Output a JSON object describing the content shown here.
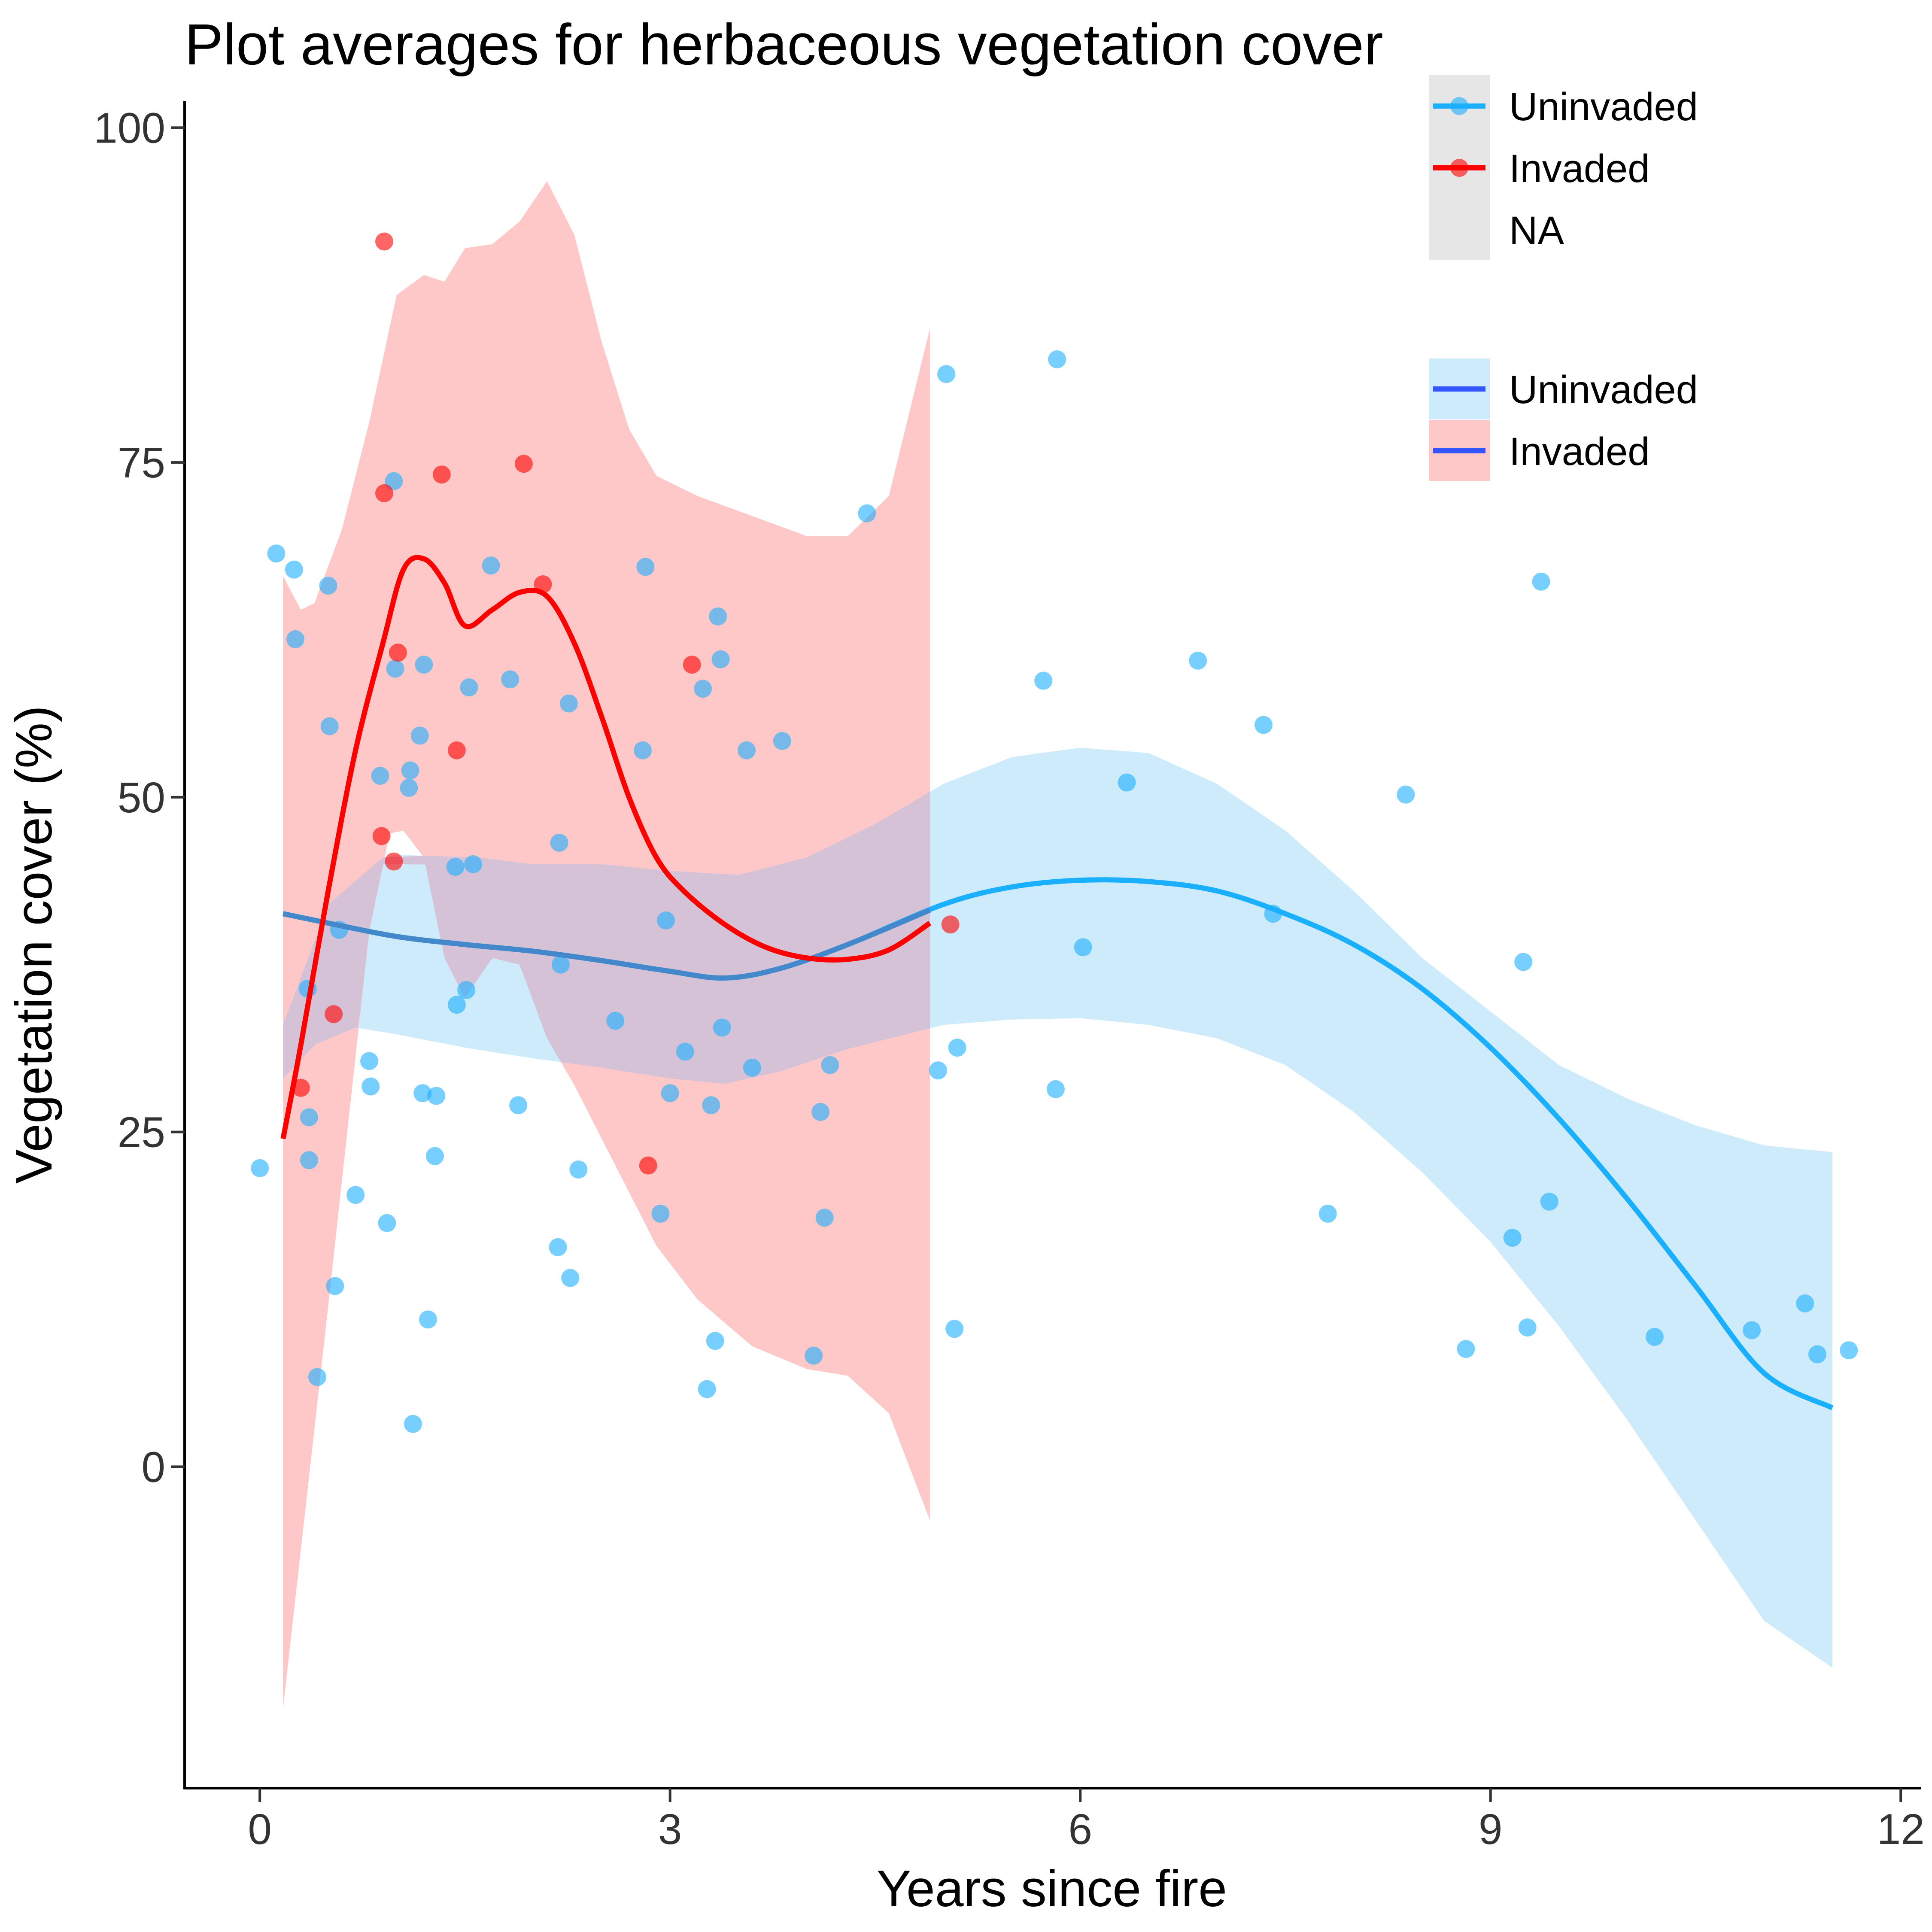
{
  "chart_data": {
    "type": "scatter",
    "title": "Plot averages for herbaceous vegetation cover",
    "xlabel": "Years since fire",
    "ylabel": "Vegetation cover (%)",
    "xlim": [
      -0.55,
      12.15
    ],
    "ylim": [
      -24,
      102
    ],
    "x_ticks": [
      0,
      3,
      6,
      9,
      12
    ],
    "y_ticks": [
      0,
      25,
      50,
      75,
      100
    ],
    "grid": false,
    "legend_position": "top-right",
    "colors": {
      "uninvaded": "#1aafff",
      "invaded": "#ff0000",
      "uninvaded_band": "#cdebfb",
      "invaded_band": "#ffc8c8",
      "overlap_band": "#d6c2d6",
      "overlap_line": "#4488cc",
      "legend_line": "#3355ff",
      "na_key": "#e6e6e6"
    },
    "series": [
      {
        "name": "Uninvaded",
        "points": [
          [
            0.0,
            22.3
          ],
          [
            0.12,
            68.2
          ],
          [
            0.25,
            67.0
          ],
          [
            0.26,
            61.8
          ],
          [
            0.35,
            35.7
          ],
          [
            0.36,
            26.1
          ],
          [
            0.36,
            22.9
          ],
          [
            0.42,
            6.7
          ],
          [
            0.5,
            65.8
          ],
          [
            0.51,
            55.3
          ],
          [
            0.55,
            13.5
          ],
          [
            0.58,
            40.1
          ],
          [
            0.7,
            20.3
          ],
          [
            0.8,
            30.3
          ],
          [
            0.81,
            28.4
          ],
          [
            0.88,
            51.6
          ],
          [
            0.93,
            18.2
          ],
          [
            0.98,
            73.6
          ],
          [
            0.99,
            59.6
          ],
          [
            1.09,
            50.7
          ],
          [
            1.1,
            52.0
          ],
          [
            1.12,
            3.2
          ],
          [
            1.17,
            54.6
          ],
          [
            1.19,
            27.9
          ],
          [
            1.2,
            59.9
          ],
          [
            1.23,
            11.0
          ],
          [
            1.28,
            23.2
          ],
          [
            1.29,
            27.7
          ],
          [
            1.43,
            44.8
          ],
          [
            1.44,
            34.5
          ],
          [
            1.51,
            35.6
          ],
          [
            1.53,
            58.2
          ],
          [
            1.56,
            45.0
          ],
          [
            1.69,
            67.3
          ],
          [
            1.83,
            58.8
          ],
          [
            1.89,
            27.0
          ],
          [
            2.18,
            16.4
          ],
          [
            2.19,
            46.6
          ],
          [
            2.2,
            37.5
          ],
          [
            2.26,
            57.0
          ],
          [
            2.27,
            14.1
          ],
          [
            2.33,
            22.2
          ],
          [
            2.6,
            33.3
          ],
          [
            2.8,
            53.5
          ],
          [
            2.82,
            67.2
          ],
          [
            2.93,
            18.9
          ],
          [
            2.97,
            40.8
          ],
          [
            3.0,
            27.9
          ],
          [
            3.11,
            31.0
          ],
          [
            3.24,
            58.1
          ],
          [
            3.27,
            5.8
          ],
          [
            3.3,
            27.0
          ],
          [
            3.33,
            9.4
          ],
          [
            3.35,
            63.5
          ],
          [
            3.37,
            60.3
          ],
          [
            3.38,
            32.8
          ],
          [
            3.56,
            53.5
          ],
          [
            3.6,
            29.8
          ],
          [
            3.82,
            54.2
          ],
          [
            4.05,
            8.3
          ],
          [
            4.1,
            26.5
          ],
          [
            4.13,
            18.6
          ],
          [
            4.17,
            30.0
          ],
          [
            4.44,
            71.2
          ],
          [
            4.96,
            29.6
          ],
          [
            5.02,
            81.6
          ],
          [
            5.08,
            10.3
          ],
          [
            5.1,
            31.3
          ],
          [
            5.73,
            58.7
          ],
          [
            5.82,
            28.2
          ],
          [
            5.83,
            82.7
          ],
          [
            6.02,
            38.8
          ],
          [
            6.34,
            51.1
          ],
          [
            6.86,
            60.2
          ],
          [
            7.34,
            55.4
          ],
          [
            7.41,
            41.3
          ],
          [
            7.81,
            18.9
          ],
          [
            8.38,
            50.2
          ],
          [
            8.82,
            8.8
          ],
          [
            9.16,
            17.1
          ],
          [
            9.24,
            37.7
          ],
          [
            9.27,
            10.4
          ],
          [
            9.37,
            66.1
          ],
          [
            9.43,
            19.8
          ],
          [
            10.2,
            9.7
          ],
          [
            10.91,
            10.2
          ],
          [
            11.3,
            12.2
          ],
          [
            11.39,
            8.4
          ],
          [
            11.62,
            8.7
          ]
        ],
        "smooth": [
          [
            0.17,
            41.3
          ],
          [
            0.5,
            40.6
          ],
          [
            1.0,
            39.6
          ],
          [
            1.5,
            39.0
          ],
          [
            2.0,
            38.5
          ],
          [
            2.5,
            37.8
          ],
          [
            3.0,
            37.0
          ],
          [
            3.4,
            36.5
          ],
          [
            3.8,
            37.2
          ],
          [
            4.3,
            39.0
          ],
          [
            5.0,
            42.0
          ],
          [
            5.5,
            43.3
          ],
          [
            6.0,
            43.8
          ],
          [
            6.5,
            43.7
          ],
          [
            7.0,
            43.0
          ],
          [
            7.5,
            41.3
          ],
          [
            8.0,
            39.0
          ],
          [
            8.5,
            35.7
          ],
          [
            9.0,
            31.3
          ],
          [
            9.5,
            26.0
          ],
          [
            10.0,
            20.0
          ],
          [
            10.5,
            13.5
          ],
          [
            11.0,
            7.0
          ],
          [
            11.5,
            4.4
          ]
        ],
        "band_upper": [
          [
            0.17,
            33.0
          ],
          [
            0.5,
            42.0
          ],
          [
            0.9,
            45.5
          ],
          [
            1.0,
            45.7
          ],
          [
            1.3,
            45.6
          ],
          [
            1.6,
            45.5
          ],
          [
            2.0,
            45.0
          ],
          [
            2.5,
            45.0
          ],
          [
            3.0,
            44.5
          ],
          [
            3.5,
            44.2
          ],
          [
            4.0,
            45.5
          ],
          [
            4.5,
            48.0
          ],
          [
            5.0,
            51.0
          ],
          [
            5.5,
            53.0
          ],
          [
            6.0,
            53.7
          ],
          [
            6.5,
            53.3
          ],
          [
            7.0,
            51.0
          ],
          [
            7.5,
            47.5
          ],
          [
            8.0,
            43.0
          ],
          [
            8.5,
            38.0
          ],
          [
            9.0,
            34.0
          ],
          [
            9.5,
            30.0
          ],
          [
            10.0,
            27.5
          ],
          [
            10.5,
            25.5
          ],
          [
            11.0,
            24.0
          ],
          [
            11.5,
            23.5
          ]
        ],
        "band_lower": [
          [
            0.17,
            29.0
          ],
          [
            0.4,
            31.5
          ],
          [
            0.7,
            32.8
          ],
          [
            1.0,
            32.3
          ],
          [
            1.5,
            31.3
          ],
          [
            2.0,
            30.5
          ],
          [
            2.5,
            29.8
          ],
          [
            3.0,
            29.0
          ],
          [
            3.4,
            28.6
          ],
          [
            3.8,
            29.5
          ],
          [
            4.3,
            31.2
          ],
          [
            5.0,
            33.0
          ],
          [
            5.5,
            33.4
          ],
          [
            6.0,
            33.5
          ],
          [
            6.5,
            33.0
          ],
          [
            7.0,
            32.0
          ],
          [
            7.5,
            30.0
          ],
          [
            8.0,
            26.5
          ],
          [
            8.5,
            22.0
          ],
          [
            9.0,
            16.8
          ],
          [
            9.5,
            10.5
          ],
          [
            10.0,
            3.5
          ],
          [
            10.5,
            -4.0
          ],
          [
            11.0,
            -11.5
          ],
          [
            11.5,
            -15.0
          ]
        ]
      },
      {
        "name": "Invaded",
        "points": [
          [
            0.3,
            28.3
          ],
          [
            0.54,
            33.8
          ],
          [
            0.89,
            47.1
          ],
          [
            0.91,
            91.5
          ],
          [
            0.91,
            72.7
          ],
          [
            0.98,
            45.2
          ],
          [
            1.01,
            60.8
          ],
          [
            1.33,
            74.1
          ],
          [
            1.44,
            53.5
          ],
          [
            1.93,
            74.9
          ],
          [
            2.07,
            65.9
          ],
          [
            2.84,
            22.5
          ],
          [
            3.16,
            59.9
          ],
          [
            5.05,
            40.5
          ]
        ],
        "smooth": [
          [
            0.17,
            24.5
          ],
          [
            0.3,
            31.5
          ],
          [
            0.5,
            43.0
          ],
          [
            0.7,
            53.5
          ],
          [
            0.9,
            61.5
          ],
          [
            1.05,
            67.0
          ],
          [
            1.2,
            67.8
          ],
          [
            1.35,
            66.0
          ],
          [
            1.5,
            62.8
          ],
          [
            1.7,
            64.0
          ],
          [
            1.9,
            65.3
          ],
          [
            2.1,
            65.0
          ],
          [
            2.3,
            61.5
          ],
          [
            2.5,
            56.0
          ],
          [
            2.7,
            50.0
          ],
          [
            2.9,
            45.5
          ],
          [
            3.1,
            43.0
          ],
          [
            3.4,
            40.5
          ],
          [
            3.7,
            38.8
          ],
          [
            4.0,
            38.0
          ],
          [
            4.3,
            37.9
          ],
          [
            4.6,
            38.6
          ],
          [
            4.9,
            40.6
          ]
        ],
        "band_upper": [
          [
            0.17,
            66.5
          ],
          [
            0.3,
            64.0
          ],
          [
            0.4,
            64.5
          ],
          [
            0.6,
            70.0
          ],
          [
            0.8,
            78.0
          ],
          [
            1.0,
            87.5
          ],
          [
            1.2,
            89.0
          ],
          [
            1.35,
            88.5
          ],
          [
            1.5,
            91.0
          ],
          [
            1.7,
            91.3
          ],
          [
            1.9,
            93.0
          ],
          [
            2.1,
            96.0
          ],
          [
            2.3,
            92.0
          ],
          [
            2.5,
            84.0
          ],
          [
            2.7,
            77.5
          ],
          [
            2.9,
            74.0
          ],
          [
            3.2,
            72.5
          ],
          [
            3.6,
            71.0
          ],
          [
            4.0,
            69.5
          ],
          [
            4.3,
            69.5
          ],
          [
            4.6,
            72.5
          ],
          [
            4.9,
            85.0
          ]
        ],
        "band_lower": [
          [
            0.17,
            -18.0
          ],
          [
            0.5,
            12.0
          ],
          [
            0.8,
            40.0
          ],
          [
            0.95,
            47.3
          ],
          [
            1.05,
            47.5
          ],
          [
            1.2,
            45.5
          ],
          [
            1.35,
            38.0
          ],
          [
            1.5,
            35.0
          ],
          [
            1.7,
            38.0
          ],
          [
            1.9,
            37.5
          ],
          [
            2.1,
            32.0
          ],
          [
            2.3,
            28.5
          ],
          [
            2.5,
            24.5
          ],
          [
            2.7,
            20.5
          ],
          [
            2.9,
            16.5
          ],
          [
            3.2,
            12.5
          ],
          [
            3.6,
            9.0
          ],
          [
            4.0,
            7.3
          ],
          [
            4.3,
            6.8
          ],
          [
            4.6,
            4.0
          ],
          [
            4.9,
            -4.0
          ]
        ]
      }
    ],
    "legend": {
      "point_group": [
        "Uninvaded",
        "Invaded",
        "NA"
      ],
      "fit_group": [
        "Uninvaded",
        "Invaded"
      ]
    }
  }
}
